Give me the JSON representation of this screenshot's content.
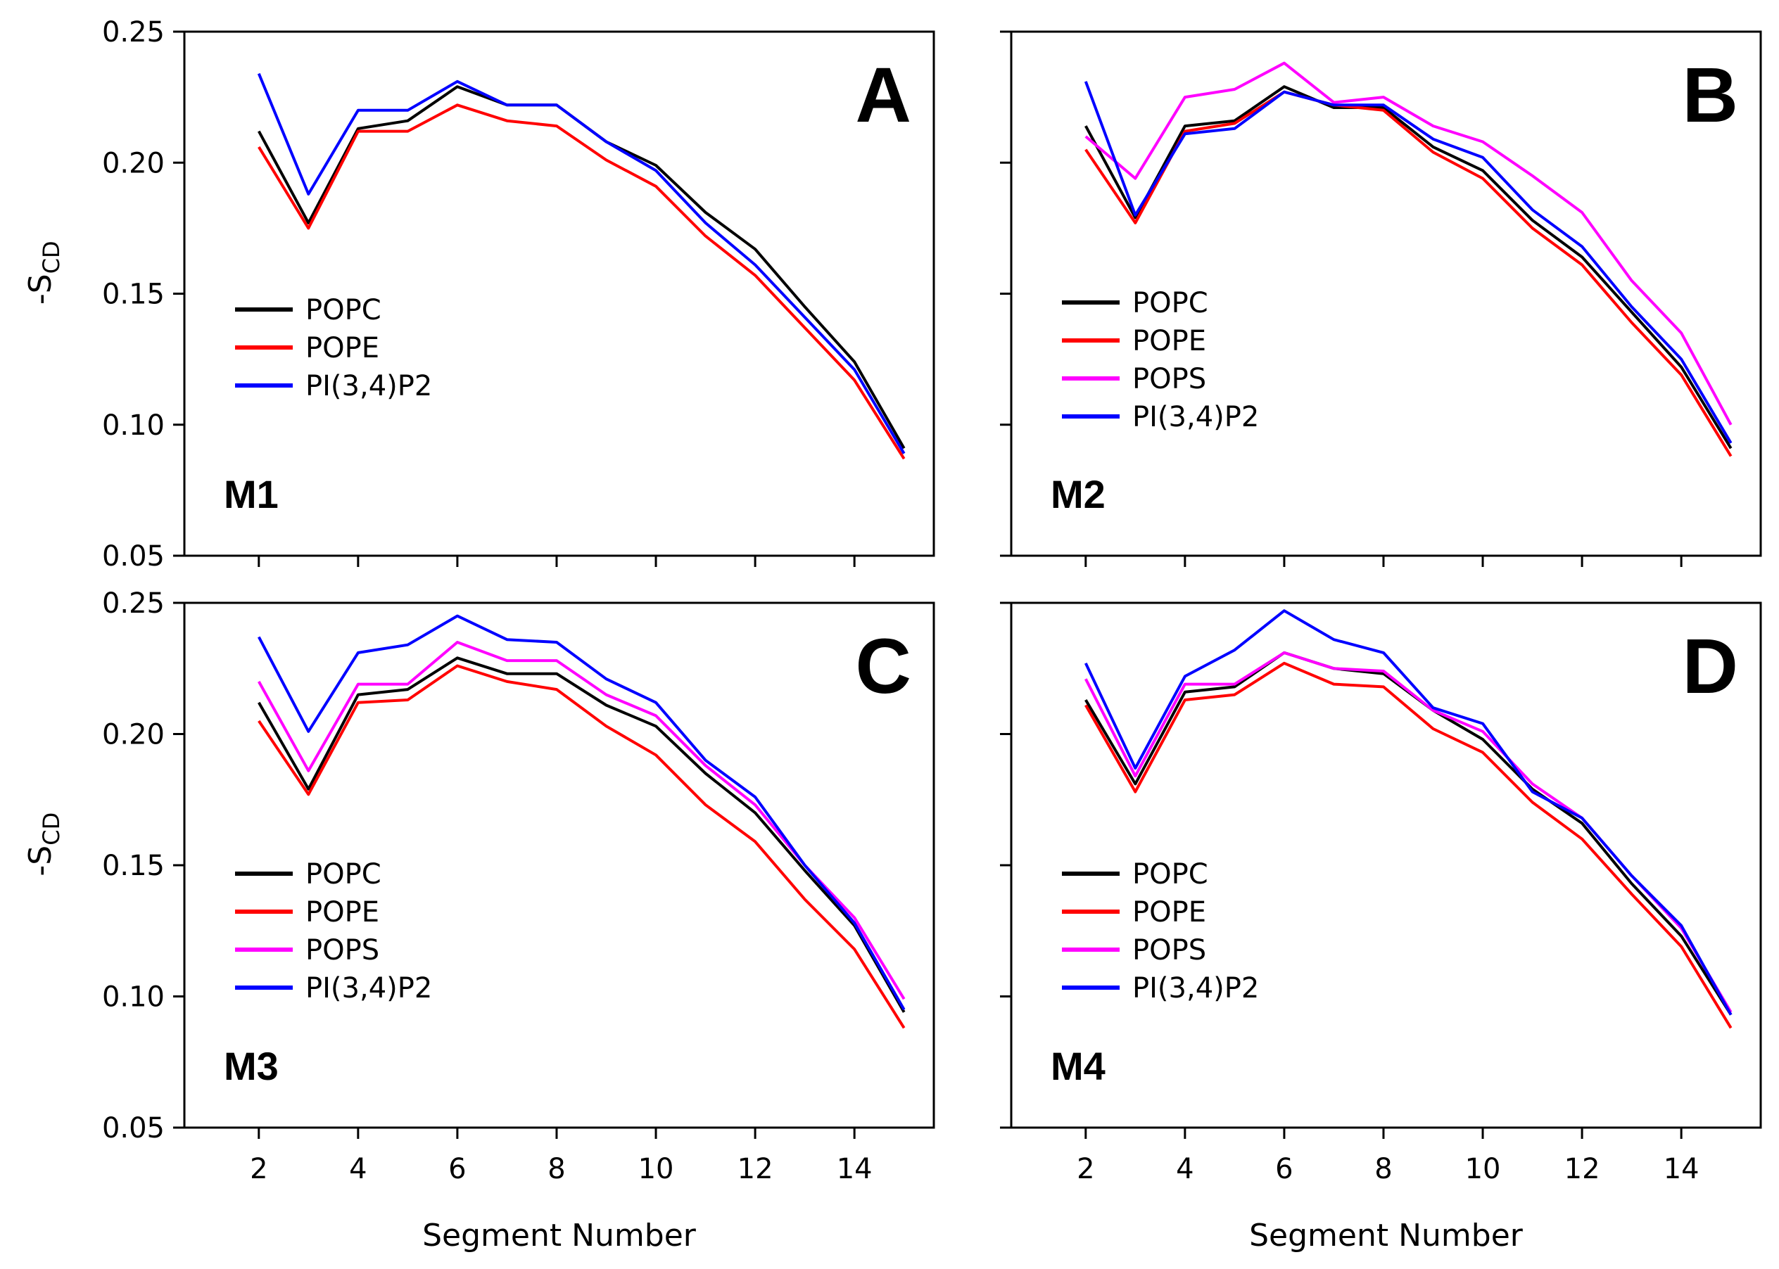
{
  "figure": {
    "ylabel_main": "-S",
    "ylabel_sub": "CD",
    "xlabel": "Segment Number"
  },
  "colors": {
    "POPC": "#000000",
    "POPE": "#ff0000",
    "POPS": "#ff00ff",
    "PI(3,4)P2": "#0000ff"
  },
  "chart_data": [
    {
      "type": "line",
      "panel": "A",
      "model": "M1",
      "xlabel": "",
      "ylabel": "-SCD",
      "xlim": [
        0.5,
        15.6
      ],
      "ylim": [
        0.05,
        0.25
      ],
      "xticks": [
        2,
        4,
        6,
        8,
        10,
        12,
        14
      ],
      "yticks": [
        0.05,
        0.1,
        0.15,
        0.2,
        0.25
      ],
      "ytick_labels": [
        "0.05",
        "0.10",
        "0.15",
        "0.20",
        "0.25"
      ],
      "legend_position": "middle-left",
      "x": [
        2,
        3,
        4,
        5,
        6,
        7,
        8,
        9,
        10,
        11,
        12,
        13,
        14,
        15
      ],
      "series": [
        {
          "name": "POPC",
          "values": [
            0.212,
            0.177,
            0.213,
            0.216,
            0.229,
            0.222,
            0.222,
            0.208,
            0.199,
            0.181,
            0.167,
            0.145,
            0.124,
            0.091
          ]
        },
        {
          "name": "POPE",
          "values": [
            0.206,
            0.175,
            0.212,
            0.212,
            0.222,
            0.216,
            0.214,
            0.201,
            0.191,
            0.172,
            0.157,
            0.137,
            0.117,
            0.087
          ]
        },
        {
          "name": "PI(3,4)P2",
          "values": [
            0.234,
            0.188,
            0.22,
            0.22,
            0.231,
            0.222,
            0.222,
            0.208,
            0.197,
            0.177,
            0.161,
            0.141,
            0.121,
            0.089
          ]
        }
      ]
    },
    {
      "type": "line",
      "panel": "B",
      "model": "M2",
      "xlabel": "",
      "ylabel": "",
      "xlim": [
        0.5,
        15.6
      ],
      "ylim": [
        0.05,
        0.25
      ],
      "xticks": [
        2,
        4,
        6,
        8,
        10,
        12,
        14
      ],
      "yticks": [
        0.05,
        0.1,
        0.15,
        0.2,
        0.25
      ],
      "ytick_labels": [],
      "legend_position": "middle-left",
      "x": [
        2,
        3,
        4,
        5,
        6,
        7,
        8,
        9,
        10,
        11,
        12,
        13,
        14,
        15
      ],
      "series": [
        {
          "name": "POPC",
          "values": [
            0.214,
            0.179,
            0.214,
            0.216,
            0.229,
            0.221,
            0.221,
            0.206,
            0.197,
            0.178,
            0.164,
            0.143,
            0.122,
            0.091
          ]
        },
        {
          "name": "POPE",
          "values": [
            0.205,
            0.177,
            0.212,
            0.215,
            0.227,
            0.222,
            0.22,
            0.204,
            0.194,
            0.175,
            0.161,
            0.139,
            0.119,
            0.088
          ]
        },
        {
          "name": "POPS",
          "values": [
            0.21,
            0.194,
            0.225,
            0.228,
            0.238,
            0.223,
            0.225,
            0.214,
            0.208,
            0.195,
            0.181,
            0.155,
            0.135,
            0.1
          ]
        },
        {
          "name": "PI(3,4)P2",
          "values": [
            0.231,
            0.18,
            0.211,
            0.213,
            0.227,
            0.222,
            0.222,
            0.209,
            0.202,
            0.182,
            0.168,
            0.145,
            0.125,
            0.093
          ]
        }
      ]
    },
    {
      "type": "line",
      "panel": "C",
      "model": "M3",
      "xlabel": "Segment Number",
      "ylabel": "-SCD",
      "xlim": [
        0.5,
        15.6
      ],
      "ylim": [
        0.05,
        0.25
      ],
      "xticks": [
        2,
        4,
        6,
        8,
        10,
        12,
        14
      ],
      "xtick_labels": [
        "2",
        "4",
        "6",
        "8",
        "10",
        "12",
        "14"
      ],
      "yticks": [
        0.05,
        0.1,
        0.15,
        0.2,
        0.25
      ],
      "ytick_labels": [
        "0.05",
        "0.10",
        "0.15",
        "0.20",
        "0.25"
      ],
      "legend_position": "middle-left",
      "x": [
        2,
        3,
        4,
        5,
        6,
        7,
        8,
        9,
        10,
        11,
        12,
        13,
        14,
        15
      ],
      "series": [
        {
          "name": "POPC",
          "values": [
            0.212,
            0.179,
            0.215,
            0.217,
            0.229,
            0.223,
            0.223,
            0.211,
            0.203,
            0.185,
            0.17,
            0.148,
            0.127,
            0.094
          ]
        },
        {
          "name": "POPE",
          "values": [
            0.205,
            0.177,
            0.212,
            0.213,
            0.226,
            0.22,
            0.217,
            0.203,
            0.192,
            0.173,
            0.159,
            0.137,
            0.118,
            0.088
          ]
        },
        {
          "name": "POPS",
          "values": [
            0.22,
            0.186,
            0.219,
            0.219,
            0.235,
            0.228,
            0.228,
            0.215,
            0.207,
            0.188,
            0.173,
            0.15,
            0.13,
            0.099
          ]
        },
        {
          "name": "PI(3,4)P2",
          "values": [
            0.237,
            0.201,
            0.231,
            0.234,
            0.245,
            0.236,
            0.235,
            0.221,
            0.212,
            0.19,
            0.176,
            0.15,
            0.128,
            0.095
          ]
        }
      ]
    },
    {
      "type": "line",
      "panel": "D",
      "model": "M4",
      "xlabel": "Segment Number",
      "ylabel": "",
      "xlim": [
        0.5,
        15.6
      ],
      "ylim": [
        0.05,
        0.25
      ],
      "xticks": [
        2,
        4,
        6,
        8,
        10,
        12,
        14
      ],
      "xtick_labels": [
        "2",
        "4",
        "6",
        "8",
        "10",
        "12",
        "14"
      ],
      "yticks": [
        0.05,
        0.1,
        0.15,
        0.2,
        0.25
      ],
      "ytick_labels": [],
      "legend_position": "middle-left",
      "x": [
        2,
        3,
        4,
        5,
        6,
        7,
        8,
        9,
        10,
        11,
        12,
        13,
        14,
        15
      ],
      "series": [
        {
          "name": "POPC",
          "values": [
            0.213,
            0.181,
            0.216,
            0.218,
            0.231,
            0.225,
            0.223,
            0.209,
            0.198,
            0.179,
            0.166,
            0.143,
            0.123,
            0.093
          ]
        },
        {
          "name": "POPE",
          "values": [
            0.211,
            0.178,
            0.213,
            0.215,
            0.227,
            0.219,
            0.218,
            0.202,
            0.193,
            0.174,
            0.16,
            0.139,
            0.119,
            0.088
          ]
        },
        {
          "name": "POPS",
          "values": [
            0.221,
            0.184,
            0.219,
            0.219,
            0.231,
            0.225,
            0.224,
            0.209,
            0.201,
            0.181,
            0.168,
            0.146,
            0.126,
            0.094
          ]
        },
        {
          "name": "PI(3,4)P2",
          "values": [
            0.227,
            0.187,
            0.222,
            0.232,
            0.247,
            0.236,
            0.231,
            0.21,
            0.204,
            0.178,
            0.168,
            0.146,
            0.127,
            0.093
          ]
        }
      ]
    }
  ]
}
